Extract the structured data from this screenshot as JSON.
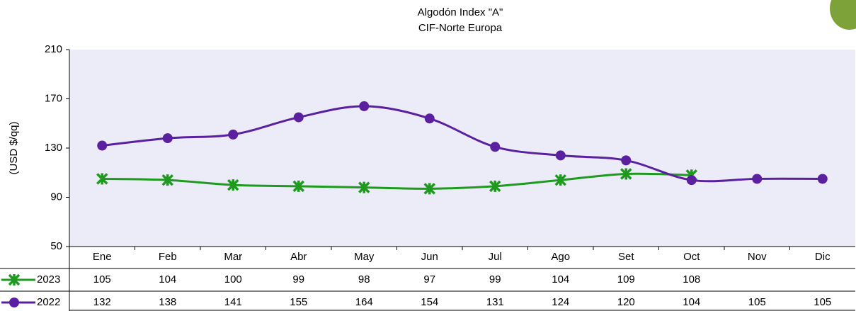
{
  "chart_data": {
    "type": "line",
    "title": "Algodón Index \"A\"",
    "subtitle": "CIF-Norte Europa",
    "y_label": "(USD $/qq)",
    "categories": [
      "Ene",
      "Feb",
      "Mar",
      "Abr",
      "May",
      "Jun",
      "Jul",
      "Ago",
      "Set",
      "Oct",
      "Nov",
      "Dic"
    ],
    "series": [
      {
        "name": "2023",
        "color": "#1e9a1e",
        "marker": "x",
        "values": [
          105,
          104,
          100,
          99,
          98,
          97,
          99,
          104,
          109,
          108,
          null,
          null
        ]
      },
      {
        "name": "2022",
        "color": "#5a20a0",
        "marker": "circle",
        "values": [
          132,
          138,
          141,
          155,
          164,
          154,
          131,
          124,
          120,
          104,
          105,
          105
        ]
      }
    ],
    "ylim": [
      50,
      210
    ],
    "yticks": [
      50,
      90,
      130,
      170,
      210
    ],
    "grid": false,
    "plot_background": "#ececf8"
  }
}
